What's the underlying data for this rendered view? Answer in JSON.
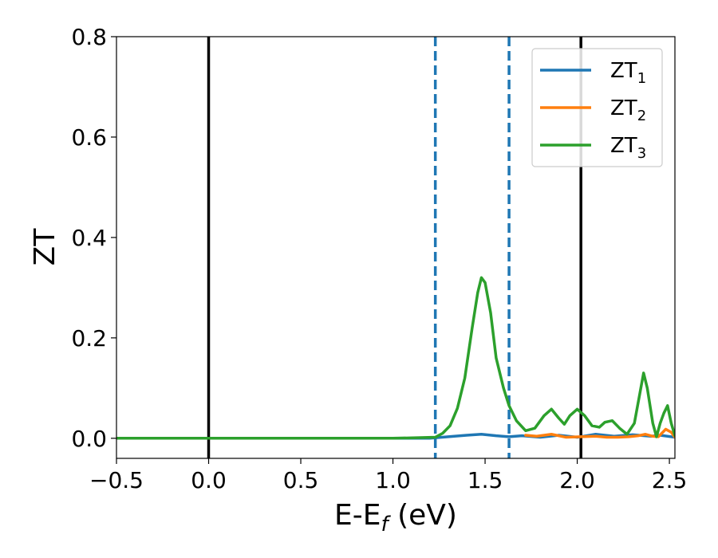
{
  "chart_data": {
    "type": "line",
    "xlabel": {
      "main": "E-E",
      "sub": "f",
      "suffix": " (eV)"
    },
    "ylabel": "ZT",
    "xlim": [
      -0.5,
      2.53
    ],
    "ylim": [
      -0.04,
      0.8
    ],
    "xticks": [
      -0.5,
      0.0,
      0.5,
      1.0,
      1.5,
      2.0,
      2.5
    ],
    "xtick_labels": [
      "−0.5",
      "0.0",
      "0.5",
      "1.0",
      "1.5",
      "2.0",
      "2.5"
    ],
    "yticks": [
      0.0,
      0.2,
      0.4,
      0.6,
      0.8
    ],
    "ytick_labels": [
      "0.0",
      "0.2",
      "0.4",
      "0.6",
      "0.8"
    ],
    "grid": false,
    "legend_position": "top-right",
    "vlines": [
      {
        "x": 0.0,
        "style": "solid",
        "color": "#000000"
      },
      {
        "x": 2.02,
        "style": "solid",
        "color": "#000000"
      },
      {
        "x": 1.23,
        "style": "dashed",
        "color": "#1f77b4"
      },
      {
        "x": 1.63,
        "style": "dashed",
        "color": "#1f77b4"
      }
    ],
    "series": [
      {
        "name": "ZT1",
        "label_main": "ZT",
        "label_sub": "1",
        "color": "#1f77b4",
        "x": [
          -0.5,
          1.2,
          1.3,
          1.4,
          1.48,
          1.56,
          1.63,
          1.7,
          1.8,
          1.9,
          2.0,
          2.1,
          2.2,
          2.3,
          2.4,
          2.45,
          2.53
        ],
        "y": [
          0.0,
          0.0,
          0.003,
          0.006,
          0.008,
          0.005,
          0.003,
          0.005,
          0.002,
          0.006,
          0.002,
          0.008,
          0.004,
          0.007,
          0.004,
          0.006,
          0.002
        ]
      },
      {
        "name": "ZT2",
        "label_main": "ZT",
        "label_sub": "2",
        "color": "#ff7f0e",
        "x": [
          1.72,
          1.78,
          1.86,
          1.94,
          2.02,
          2.1,
          2.16,
          2.22,
          2.28,
          2.33,
          2.37,
          2.41,
          2.44,
          2.48,
          2.51,
          2.53
        ],
        "y": [
          0.006,
          0.004,
          0.008,
          0.002,
          0.003,
          0.004,
          0.002,
          0.002,
          0.003,
          0.005,
          0.008,
          0.004,
          0.003,
          0.018,
          0.012,
          0.002
        ]
      },
      {
        "name": "ZT3",
        "label_main": "ZT",
        "label_sub": "3",
        "color": "#2ca02c",
        "x": [
          -0.5,
          1.0,
          1.23,
          1.27,
          1.31,
          1.35,
          1.39,
          1.43,
          1.46,
          1.48,
          1.5,
          1.53,
          1.56,
          1.6,
          1.63,
          1.67,
          1.72,
          1.77,
          1.82,
          1.86,
          1.9,
          1.93,
          1.96,
          2.0,
          2.04,
          2.08,
          2.12,
          2.15,
          2.19,
          2.23,
          2.27,
          2.31,
          2.34,
          2.36,
          2.38,
          2.41,
          2.43,
          2.45,
          2.47,
          2.49,
          2.51,
          2.53
        ],
        "y": [
          0.0,
          0.0,
          0.002,
          0.01,
          0.025,
          0.06,
          0.12,
          0.22,
          0.29,
          0.32,
          0.31,
          0.25,
          0.16,
          0.1,
          0.065,
          0.035,
          0.015,
          0.02,
          0.045,
          0.058,
          0.04,
          0.028,
          0.045,
          0.058,
          0.045,
          0.025,
          0.022,
          0.032,
          0.035,
          0.02,
          0.008,
          0.03,
          0.09,
          0.13,
          0.1,
          0.03,
          0.003,
          0.03,
          0.05,
          0.065,
          0.03,
          0.005
        ]
      }
    ]
  }
}
